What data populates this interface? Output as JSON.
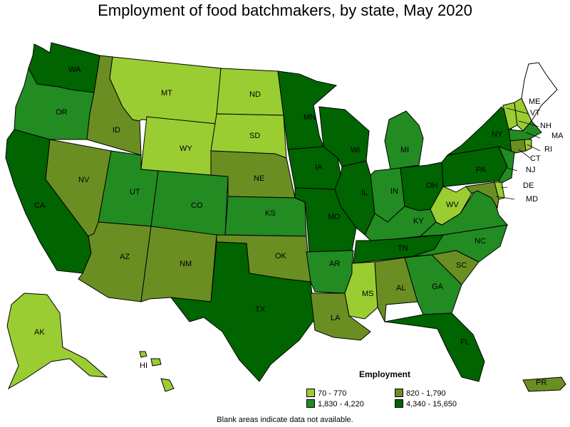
{
  "title": "Employment of food batchmakers, by state, May 2020",
  "legend": {
    "title": "Employment",
    "items": [
      {
        "label": "70 - 770",
        "color": "#9acd32"
      },
      {
        "label": "820 - 1,790",
        "color": "#6b8e23"
      },
      {
        "label": "1,830 - 4,220",
        "color": "#228b22"
      },
      {
        "label": "4,340 - 15,650",
        "color": "#006400"
      }
    ]
  },
  "footnote": "Blank areas indicate data not available.",
  "colors": {
    "no_data": "#ffffff",
    "border": "#000000"
  },
  "states": {
    "WA": 3,
    "OR": 2,
    "CA": 3,
    "ID": 1,
    "NV": 1,
    "MT": 0,
    "WY": 0,
    "UT": 2,
    "AZ": 1,
    "CO": 2,
    "NM": 1,
    "ND": 0,
    "SD": 0,
    "NE": 1,
    "KS": 2,
    "OK": 1,
    "TX": 3,
    "MN": 3,
    "IA": 3,
    "MO": 3,
    "AR": 2,
    "LA": 1,
    "WI": 3,
    "IL": 3,
    "MI": 2,
    "IN": 2,
    "OH": 3,
    "KY": 2,
    "TN": 3,
    "MS": 0,
    "AL": 1,
    "GA": 2,
    "FL": 3,
    "SC": 1,
    "NC": 2,
    "VA": 2,
    "WV": 0,
    "PA": 3,
    "NY": 3,
    "VT": 0,
    "NH": 0,
    "ME": null,
    "MA": 2,
    "RI": 0,
    "CT": 1,
    "NJ": 2,
    "DE": 0,
    "MD": 1,
    "AK": 0,
    "HI": 0,
    "PR": 1
  }
}
